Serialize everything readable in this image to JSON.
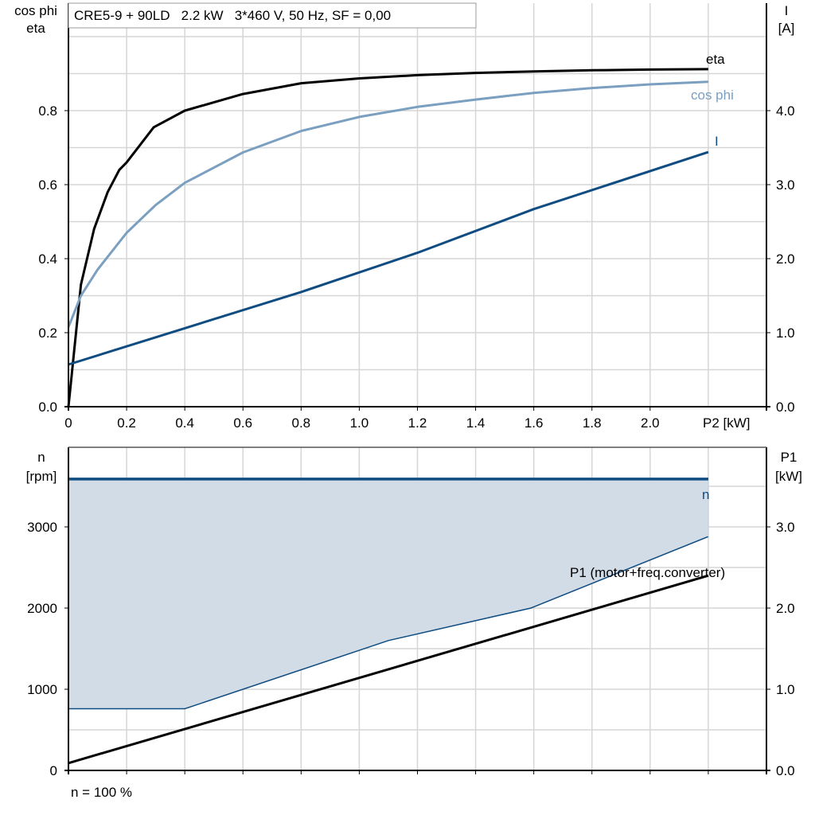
{
  "chart_data": [
    {
      "type": "line",
      "title": "CRE5-9 + 90LD   2.2 kW   3*460 V, 50 Hz, SF = 0,00",
      "xlabel": "P2 [kW]",
      "ylabel": "cos phi\neta",
      "ylabel_lines": [
        "cos phi",
        "eta"
      ],
      "y2label_lines": [
        "I",
        "[A]"
      ],
      "xlim": [
        0,
        2.4
      ],
      "ylim": [
        0,
        1.0
      ],
      "y2lim": [
        0,
        5.0
      ],
      "grid": true,
      "x_ticks": [
        "0",
        "0.2",
        "0.4",
        "0.6",
        "0.8",
        "1.0",
        "1.2",
        "1.4",
        "1.6",
        "1.8",
        "2.0"
      ],
      "y_ticks": [
        "0.0",
        "0.2",
        "0.4",
        "0.6",
        "0.8"
      ],
      "y2_ticks": [
        "0.0",
        "1.0",
        "2.0",
        "3.0",
        "4.0"
      ],
      "series": [
        {
          "name": "eta",
          "axis": "left",
          "color": "#000000",
          "x": [
            0,
            0.043,
            0.088,
            0.135,
            0.175,
            0.2,
            0.293,
            0.4,
            0.6,
            0.8,
            1.0,
            1.2,
            1.4,
            1.6,
            1.8,
            2.0,
            2.2
          ],
          "y": [
            0,
            0.33,
            0.48,
            0.58,
            0.64,
            0.66,
            0.755,
            0.8,
            0.845,
            0.874,
            0.887,
            0.896,
            0.902,
            0.906,
            0.909,
            0.911,
            0.912
          ]
        },
        {
          "name": "cos phi",
          "axis": "left",
          "color": "#7a9fc0",
          "x": [
            0,
            0.043,
            0.1,
            0.2,
            0.3,
            0.4,
            0.6,
            0.8,
            1.0,
            1.2,
            1.4,
            1.6,
            1.8,
            2.0,
            2.2
          ],
          "y": [
            0.215,
            0.3,
            0.37,
            0.47,
            0.545,
            0.605,
            0.687,
            0.745,
            0.783,
            0.81,
            0.83,
            0.848,
            0.861,
            0.871,
            0.878
          ]
        },
        {
          "name": "I",
          "axis": "right",
          "color": "#0f4c81",
          "x": [
            0,
            0.4,
            0.8,
            1.2,
            1.6,
            2.2
          ],
          "y": [
            0.57,
            1.06,
            1.55,
            2.08,
            2.67,
            3.44
          ]
        }
      ]
    },
    {
      "type": "area",
      "xlim": [
        0,
        2.4
      ],
      "ylim": [
        0,
        4000
      ],
      "y2lim": [
        0,
        4.0
      ],
      "ylabel_lines": [
        "n",
        "[rpm]"
      ],
      "y2label_lines": [
        "P1",
        "[kW]"
      ],
      "y_ticks": [
        "0",
        "1000",
        "2000",
        "3000"
      ],
      "y2_ticks": [
        "0.0",
        "1.0",
        "2.0",
        "3.0"
      ],
      "grid": true,
      "footnote": "n = 100 %",
      "n_band": {
        "name": "n",
        "color": "#0f4c81",
        "fill": "#d1dce7",
        "upper_x": [
          0,
          2.2
        ],
        "upper_y": [
          3590,
          3590
        ],
        "lower_x": [
          0,
          0.4,
          1.1,
          1.59,
          2.2
        ],
        "lower_y": [
          760,
          760,
          1600,
          2000,
          2880
        ]
      },
      "series": [
        {
          "name": "P1 (motor+freq.converter)",
          "axis": "right",
          "color": "#000000",
          "x": [
            0,
            2.2
          ],
          "y": [
            0.09,
            2.4
          ]
        }
      ]
    }
  ]
}
